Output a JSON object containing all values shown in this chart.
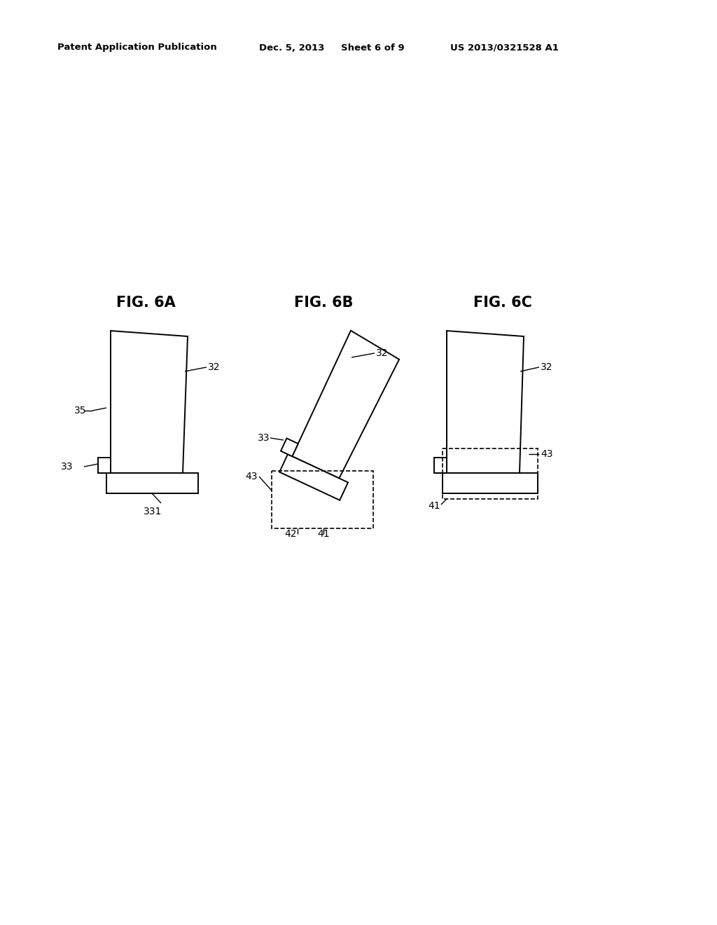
{
  "background_color": "#ffffff",
  "header_text": "Patent Application Publication",
  "header_date": "Dec. 5, 2013",
  "header_sheet": "Sheet 6 of 9",
  "header_patent": "US 2013/0321528 A1",
  "line_color": "#000000",
  "line_width": 1.4
}
